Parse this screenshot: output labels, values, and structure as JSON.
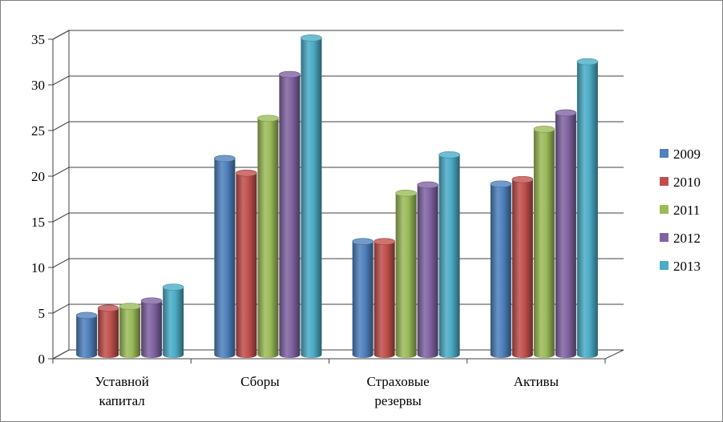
{
  "chart_data": {
    "type": "bar",
    "style": "3d-cylinder",
    "categories": [
      [
        "Уставной",
        "капитал"
      ],
      [
        "Сборы"
      ],
      [
        "Страховые",
        "резервы"
      ],
      [
        "Активы"
      ]
    ],
    "series": [
      {
        "name": "2009",
        "color": "#4f81bd",
        "values": [
          4.3,
          21.5,
          12.4,
          18.7
        ]
      },
      {
        "name": "2010",
        "color": "#c0504d",
        "values": [
          5.1,
          19.9,
          12.4,
          19.2
        ]
      },
      {
        "name": "2011",
        "color": "#9bbb59",
        "values": [
          5.3,
          25.9,
          17.7,
          24.7
        ]
      },
      {
        "name": "2012",
        "color": "#8064a2",
        "values": [
          5.9,
          30.7,
          18.6,
          26.5
        ]
      },
      {
        "name": "2013",
        "color": "#4bacc6",
        "values": [
          7.4,
          34.7,
          21.9,
          32.1
        ]
      }
    ],
    "ylim": [
      0,
      35
    ],
    "yticks": [
      0,
      5,
      10,
      15,
      20,
      25,
      30,
      35
    ],
    "grid": true,
    "legend_position": "right"
  }
}
